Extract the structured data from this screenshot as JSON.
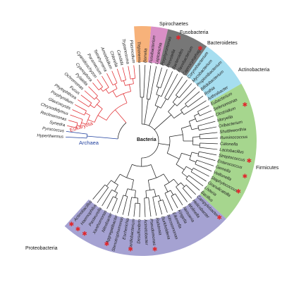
{
  "figure": {
    "root_label": "Bacteria",
    "domains": [
      {
        "key": "eukaryota",
        "label": "Eukaryota",
        "color": "#e0272c"
      },
      {
        "key": "archaea",
        "label": "Archaea",
        "color": "#1f3f9e"
      }
    ],
    "groups": [
      {
        "key": "spirochaetes",
        "label": "Spirochaetes",
        "color": "#f7b27a"
      },
      {
        "key": "fusobacteria",
        "label": "Fusobacteria",
        "color": "#d98fc6"
      },
      {
        "key": "bacteroidetes",
        "label": "Bacteroidetes",
        "color": "#777777"
      },
      {
        "key": "actinobacteria",
        "label": "Actinobacteria",
        "color": "#a6def0"
      },
      {
        "key": "firmicutes",
        "label": "Firmicutes",
        "color": "#a6d68e"
      },
      {
        "key": "proteobacteria",
        "label": "Proteobacteria",
        "color": "#a5a2d2"
      }
    ],
    "marker_color": "#e0272c",
    "branch_color": "#222222"
  },
  "leaves": [
    {
      "name": "Hyperthermus",
      "group": "archaea",
      "marked": false
    },
    {
      "name": "Pyrococcus",
      "group": "archaea",
      "marked": false
    },
    {
      "name": "Synedra",
      "group": "eukaryota",
      "marked": false
    },
    {
      "name": "Reclinomonas",
      "group": "eukaryota",
      "marked": false
    },
    {
      "name": "Chrysodidymus",
      "group": "eukaryota",
      "marked": false
    },
    {
      "name": "Glaucocystis",
      "group": "eukaryota",
      "marked": false
    },
    {
      "name": "Porphyridium",
      "group": "eukaryota",
      "marked": false
    },
    {
      "name": "Phytophthora",
      "group": "eukaryota",
      "marked": false
    },
    {
      "name": "Fucus",
      "group": "eukaryota",
      "marked": false
    },
    {
      "name": "Ochromonas",
      "group": "eukaryota",
      "marked": false
    },
    {
      "name": "Pylaiella",
      "group": "eukaryota",
      "marked": false
    },
    {
      "name": "Cyanophora",
      "group": "eukaryota",
      "marked": false
    },
    {
      "name": "Cyanidioschyzon",
      "group": "eukaryota",
      "marked": false
    },
    {
      "name": "Paramecium",
      "group": "eukaryota",
      "marked": false
    },
    {
      "name": "Tetrahymena",
      "group": "eukaryota",
      "marked": false
    },
    {
      "name": "Amoebidium",
      "group": "eukaryota",
      "marked": false
    },
    {
      "name": "Chlorella",
      "group": "eukaryota",
      "marked": false
    },
    {
      "name": "Candida",
      "group": "eukaryota",
      "marked": false
    },
    {
      "name": "Trypanosoma",
      "group": "eukaryota",
      "marked": false
    },
    {
      "name": "Plasmodium",
      "group": "eukaryota",
      "marked": false
    },
    {
      "name": "Treponema",
      "group": "spirochaetes",
      "marked": false
    },
    {
      "name": "Borrelia",
      "group": "spirochaetes",
      "marked": false
    },
    {
      "name": "Fusobacterium",
      "group": "fusobacteria",
      "marked": false
    },
    {
      "name": "Leptotrichia",
      "group": "fusobacteria",
      "marked": false
    },
    {
      "name": "Porphyromonas",
      "group": "bacteroidetes",
      "marked": false
    },
    {
      "name": "Prevotella",
      "group": "bacteroidetes",
      "marked": true
    },
    {
      "name": "Bacteroides",
      "group": "bacteroidetes",
      "marked": false
    },
    {
      "name": "Flavobacterium",
      "group": "bacteroidetes",
      "marked": false
    },
    {
      "name": "Capnocytophaga",
      "group": "bacteroidetes",
      "marked": true
    },
    {
      "name": "Corynebacterium",
      "group": "actinobacteria",
      "marked": false
    },
    {
      "name": "Mycobacterium",
      "group": "actinobacteria",
      "marked": false
    },
    {
      "name": "Propionibacterium",
      "group": "actinobacteria",
      "marked": false
    },
    {
      "name": "Bifidobacterium",
      "group": "actinobacteria",
      "marked": false
    },
    {
      "name": "Rothia",
      "group": "actinobacteria",
      "marked": false
    },
    {
      "name": "Arthrobacter",
      "group": "actinobacteria",
      "marked": false
    },
    {
      "name": "Eubacterium",
      "group": "firmicutes",
      "marked": false
    },
    {
      "name": "Selenomonas",
      "group": "firmicutes",
      "marked": false
    },
    {
      "name": "Clostridium",
      "group": "firmicutes",
      "marked": true
    },
    {
      "name": "Moryella",
      "group": "firmicutes",
      "marked": false
    },
    {
      "name": "Oribacterium",
      "group": "firmicutes",
      "marked": false
    },
    {
      "name": "Shuttleworthia",
      "group": "firmicutes",
      "marked": false
    },
    {
      "name": "Ruminococcus",
      "group": "firmicutes",
      "marked": false
    },
    {
      "name": "Catonella",
      "group": "firmicutes",
      "marked": false
    },
    {
      "name": "Lactobacillus",
      "group": "firmicutes",
      "marked": false
    },
    {
      "name": "Streptococcus",
      "group": "firmicutes",
      "marked": true
    },
    {
      "name": "Enterococcus",
      "group": "firmicutes",
      "marked": false
    },
    {
      "name": "Gemella",
      "group": "firmicutes",
      "marked": true
    },
    {
      "name": "Veillonella",
      "group": "firmicutes",
      "marked": false
    },
    {
      "name": "Staphylococcus",
      "group": "firmicutes",
      "marked": true
    },
    {
      "name": "Granulicatella",
      "group": "firmicutes",
      "marked": false
    },
    {
      "name": "Listeria",
      "group": "firmicutes",
      "marked": false
    },
    {
      "name": "Bacillus",
      "group": "firmicutes",
      "marked": false
    },
    {
      "name": "Campylobacter",
      "group": "proteobacteria",
      "marked": true
    },
    {
      "name": "Helicobacter",
      "group": "proteobacteria",
      "marked": false
    },
    {
      "name": "Wolinella",
      "group": "proteobacteria",
      "marked": false
    },
    {
      "name": "Neisseria",
      "group": "proteobacteria",
      "marked": false
    },
    {
      "name": "Kingella",
      "group": "proteobacteria",
      "marked": false
    },
    {
      "name": "Eikenella",
      "group": "proteobacteria",
      "marked": false
    },
    {
      "name": "Nitrosomonas",
      "group": "proteobacteria",
      "marked": false
    },
    {
      "name": "Burkholderia",
      "group": "proteobacteria",
      "marked": false
    },
    {
      "name": "Ralstonia",
      "group": "proteobacteria",
      "marked": false
    },
    {
      "name": "Pseudomonas",
      "group": "proteobacteria",
      "marked": true
    },
    {
      "name": "Acinetobacter",
      "group": "proteobacteria",
      "marked": false
    },
    {
      "name": "Desulfovibrio",
      "group": "proteobacteria",
      "marked": false
    },
    {
      "name": "Cardiobacterium",
      "group": "proteobacteria",
      "marked": true
    },
    {
      "name": "Escherichia",
      "group": "proteobacteria",
      "marked": false
    },
    {
      "name": "Stenotrophomonas",
      "group": "proteobacteria",
      "marked": false
    },
    {
      "name": "Aggregatibacter",
      "group": "proteobacteria",
      "marked": true
    },
    {
      "name": "Nitrobacter",
      "group": "proteobacteria",
      "marked": false
    },
    {
      "name": "Xanthomonas",
      "group": "proteobacteria",
      "marked": false
    },
    {
      "name": "Pasteurella",
      "group": "proteobacteria",
      "marked": true
    },
    {
      "name": "Haemophilus",
      "group": "proteobacteria",
      "marked": true
    },
    {
      "name": "Actinobacillus",
      "group": "proteobacteria",
      "marked": true
    }
  ]
}
